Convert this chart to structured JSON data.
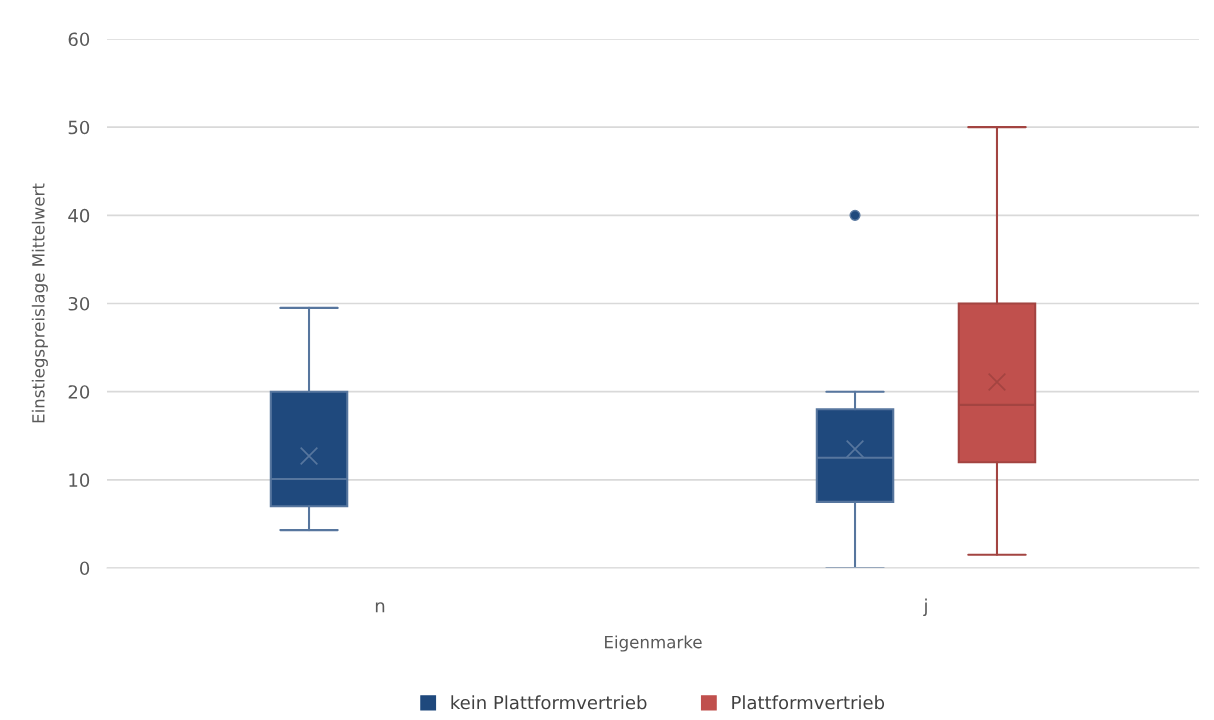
{
  "chart_data": {
    "type": "box",
    "categories": [
      "n",
      "j"
    ],
    "xlabel": "Eigenmarke",
    "ylabel": "Einstiegspreislage Mittelwert",
    "ylim": [
      0,
      60
    ],
    "yticks": [
      0,
      10,
      20,
      30,
      40,
      50,
      60
    ],
    "grid": "y",
    "legend": "bottom",
    "series": [
      {
        "name": "kein Plattformvertrieb",
        "color": "#1f497d",
        "boxes": [
          {
            "low": 4.3,
            "q1": 7,
            "median": 10.1,
            "q3": 20,
            "high": 29.5,
            "mean": 12.7
          },
          {
            "low": 0,
            "q1": 7.5,
            "median": 12.5,
            "q3": 18,
            "high": 20,
            "mean": 13.5,
            "outliers": [
              40
            ]
          }
        ]
      },
      {
        "name": "Plattformvertrieb",
        "color": "#c0504d",
        "boxes": [
          null,
          {
            "low": 1.5,
            "q1": 12,
            "median": 18.5,
            "q3": 30,
            "high": 50,
            "mean": 21.1
          }
        ]
      }
    ]
  }
}
